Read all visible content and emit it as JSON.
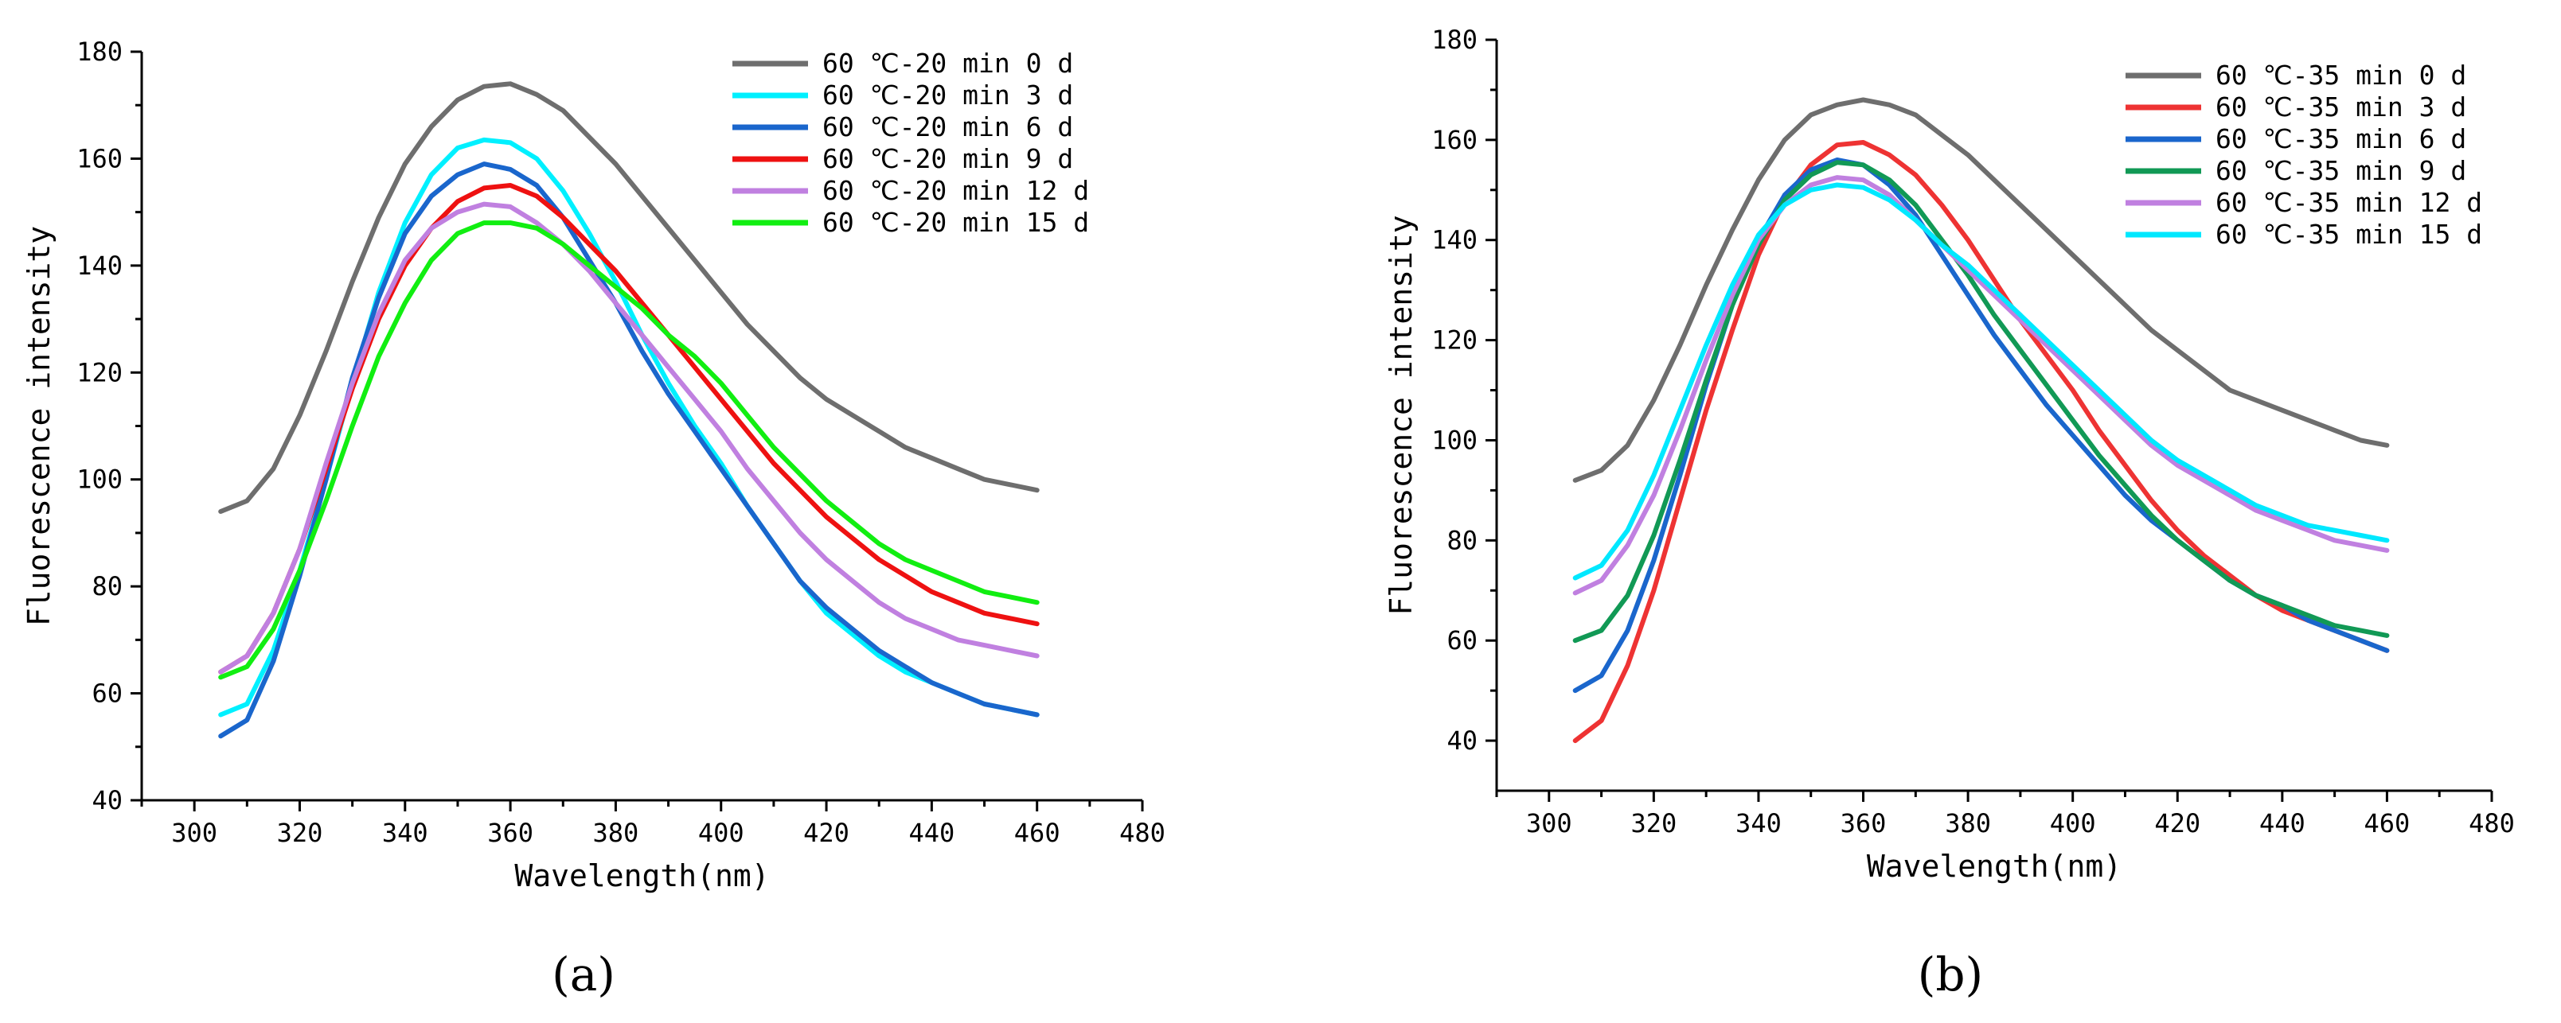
{
  "chart_data": [
    {
      "type": "line",
      "panel_label": "(a)",
      "xlabel": "Wavelength(nm)",
      "ylabel": "Fluorescence intensity",
      "xlim": [
        290,
        480
      ],
      "ylim": [
        40,
        180
      ],
      "xticks": [
        300,
        320,
        340,
        360,
        380,
        400,
        420,
        440,
        460,
        480
      ],
      "yticks": [
        40,
        60,
        80,
        100,
        120,
        140,
        160,
        180
      ],
      "legend_position": "top-right",
      "x": [
        305,
        310,
        315,
        320,
        325,
        330,
        335,
        340,
        345,
        350,
        355,
        360,
        365,
        370,
        375,
        380,
        385,
        390,
        395,
        400,
        405,
        410,
        415,
        420,
        425,
        430,
        435,
        440,
        445,
        450,
        455,
        460
      ],
      "series": [
        {
          "name": "60 ℃-20 min 0 d",
          "color": "#6e6e6e",
          "values": [
            94,
            96,
            102,
            112,
            124,
            137,
            149,
            159,
            166,
            171,
            173.5,
            174,
            172,
            169,
            164,
            159,
            153,
            147,
            141,
            135,
            129,
            124,
            119,
            115,
            112,
            109,
            106,
            104,
            102,
            100,
            99,
            98
          ]
        },
        {
          "name": "60 ℃-20 min 3 d",
          "color": "#00f0ff",
          "values": [
            56,
            58,
            68,
            83,
            100,
            118,
            135,
            148,
            157,
            162,
            163.5,
            163,
            160,
            154,
            146,
            137,
            127,
            118,
            110,
            103,
            95,
            88,
            81,
            75,
            71,
            67,
            64,
            62,
            60,
            58,
            57,
            56
          ]
        },
        {
          "name": "60 ℃-20 min 6 d",
          "color": "#1a66cc",
          "values": [
            52,
            55,
            66,
            82,
            100,
            119,
            134,
            146,
            153,
            157,
            159,
            158,
            155,
            149,
            141,
            133,
            124,
            116,
            109,
            102,
            95,
            88,
            81,
            76,
            72,
            68,
            65,
            62,
            60,
            58,
            57,
            56
          ]
        },
        {
          "name": "60 ℃-20 min 9 d",
          "color": "#ee1111",
          "values": [
            64,
            67,
            75,
            87,
            102,
            117,
            130,
            140,
            147,
            152,
            154.5,
            155,
            153,
            149,
            144,
            139,
            133,
            127,
            121,
            115,
            109,
            103,
            98,
            93,
            89,
            85,
            82,
            79,
            77,
            75,
            74,
            73
          ]
        },
        {
          "name": "60 ℃-20 min 12 d",
          "color": "#c080e0",
          "values": [
            64,
            67,
            75,
            87,
            103,
            118,
            131,
            141,
            147,
            150,
            151.5,
            151,
            148,
            144,
            139,
            133,
            127,
            121,
            115,
            109,
            102,
            96,
            90,
            85,
            81,
            77,
            74,
            72,
            70,
            69,
            68,
            67
          ]
        },
        {
          "name": "60 ℃-20 min 15 d",
          "color": "#11ee11",
          "values": [
            63,
            65,
            72,
            83,
            96,
            110,
            123,
            133,
            141,
            146,
            148,
            148,
            147,
            144,
            140,
            136,
            132,
            127,
            123,
            118,
            112,
            106,
            101,
            96,
            92,
            88,
            85,
            83,
            81,
            79,
            78,
            77
          ]
        }
      ]
    },
    {
      "type": "line",
      "panel_label": "(b)",
      "xlabel": "Wavelength(nm)",
      "ylabel": "Fluorescence intensity",
      "xlim": [
        290,
        480
      ],
      "ylim": [
        30,
        180
      ],
      "xticks": [
        300,
        320,
        340,
        360,
        380,
        400,
        420,
        440,
        460,
        480
      ],
      "yticks": [
        40,
        60,
        80,
        100,
        120,
        140,
        160,
        180
      ],
      "legend_position": "top-right",
      "x": [
        305,
        310,
        315,
        320,
        325,
        330,
        335,
        340,
        345,
        350,
        355,
        360,
        365,
        370,
        375,
        380,
        385,
        390,
        395,
        400,
        405,
        410,
        415,
        420,
        425,
        430,
        435,
        440,
        445,
        450,
        455,
        460
      ],
      "series": [
        {
          "name": "60 ℃-35 min 0 d",
          "color": "#6e6e6e",
          "values": [
            92,
            94,
            99,
            108,
            119,
            131,
            142,
            152,
            160,
            165,
            167,
            168,
            167,
            165,
            161,
            157,
            152,
            147,
            142,
            137,
            132,
            127,
            122,
            118,
            114,
            110,
            108,
            106,
            104,
            102,
            100,
            99
          ]
        },
        {
          "name": "60 ℃-35 min 3 d",
          "color": "#ee3333",
          "values": [
            40,
            44,
            55,
            70,
            88,
            106,
            122,
            137,
            148,
            155,
            159,
            159.5,
            157,
            153,
            147,
            140,
            132,
            124,
            117,
            110,
            102,
            95,
            88,
            82,
            77,
            73,
            69,
            66,
            64,
            62,
            60,
            58
          ]
        },
        {
          "name": "60 ℃-35 min 6 d",
          "color": "#1a66cc",
          "values": [
            50,
            53,
            62,
            76,
            93,
            111,
            127,
            140,
            149,
            154,
            156,
            155,
            151,
            145,
            137,
            129,
            121,
            114,
            107,
            101,
            95,
            89,
            84,
            80,
            76,
            72,
            69,
            67,
            64,
            62,
            60,
            58
          ]
        },
        {
          "name": "60 ℃-35 min 9 d",
          "color": "#119955",
          "values": [
            60,
            62,
            69,
            81,
            96,
            112,
            127,
            139,
            148,
            153,
            155.5,
            155,
            152,
            147,
            140,
            133,
            125,
            118,
            111,
            104,
            97,
            91,
            85,
            80,
            76,
            72,
            69,
            67,
            65,
            63,
            62,
            61
          ]
        },
        {
          "name": "60 ℃-35 min 12 d",
          "color": "#c080e0",
          "values": [
            69.5,
            72,
            79,
            89,
            102,
            116,
            129,
            140,
            147,
            151,
            152.5,
            152,
            149,
            144,
            139,
            134,
            129,
            124,
            119,
            114,
            109,
            104,
            99,
            95,
            92,
            89,
            86,
            84,
            82,
            80,
            79,
            78
          ]
        },
        {
          "name": "60 ℃-35 min 15 d",
          "color": "#00e8ff",
          "values": [
            72.5,
            75,
            82,
            93,
            106,
            119,
            131,
            141,
            147,
            150,
            151,
            150.5,
            148,
            144,
            139,
            135,
            130,
            125,
            120,
            115,
            110,
            105,
            100,
            96,
            93,
            90,
            87,
            85,
            83,
            82,
            81,
            80
          ]
        }
      ]
    }
  ]
}
